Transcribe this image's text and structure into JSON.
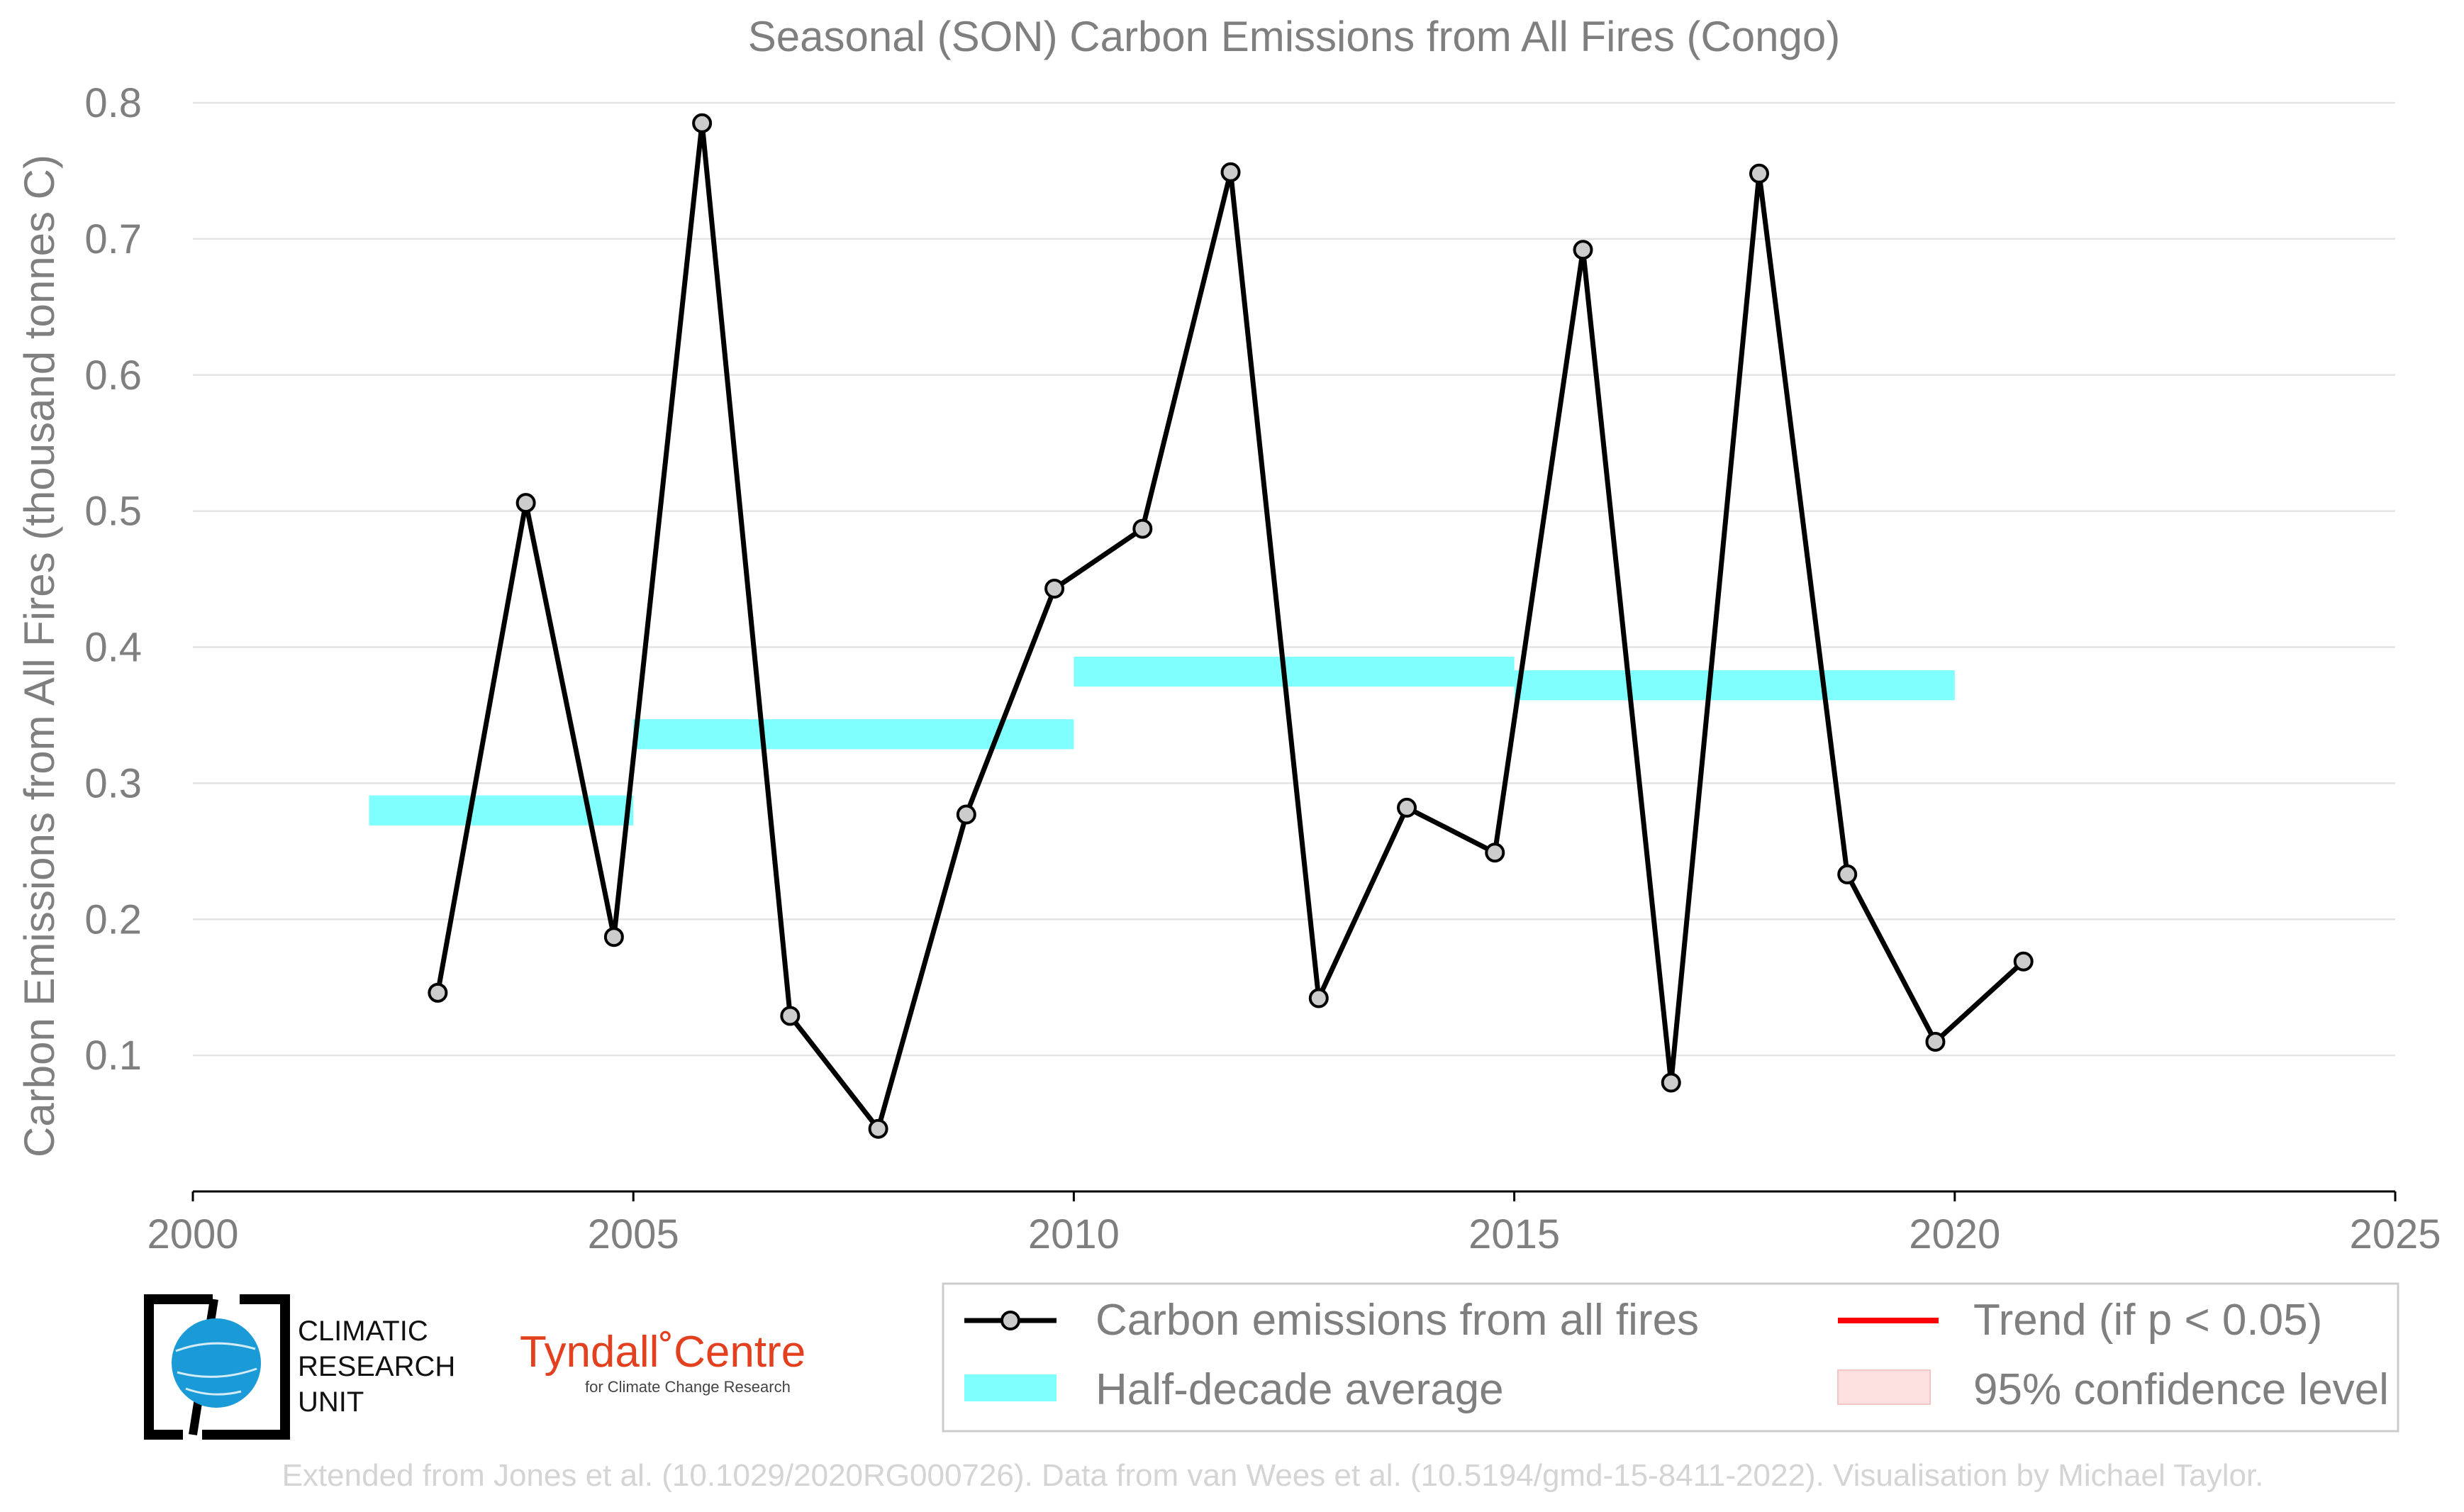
{
  "chart_data": {
    "type": "line",
    "title": "Seasonal (SON) Carbon Emissions from All Fires (Congo)",
    "xlabel": "",
    "ylabel": "Carbon Emissions from All Fires (thousand tonnes C)",
    "xlim": [
      2000,
      2025
    ],
    "ylim": [
      0,
      0.8
    ],
    "x_ticks": [
      "2000",
      "2005",
      "2010",
      "2015",
      "2020",
      "2025"
    ],
    "y_ticks": [
      "0.1",
      "0.2",
      "0.3",
      "0.4",
      "0.5",
      "0.6",
      "0.7",
      "0.8"
    ],
    "grid": "horizontal",
    "legend_position": "bottom-right",
    "series": [
      {
        "name": "Carbon emissions from all fires",
        "color": "#000000",
        "marker_fill": "#cccccc",
        "x": [
          2003,
          2004,
          2005,
          2006,
          2007,
          2008,
          2009,
          2010,
          2011,
          2012,
          2013,
          2014,
          2015,
          2016,
          2017,
          2018,
          2019,
          2020,
          2021
        ],
        "y": [
          0.146,
          0.506,
          0.187,
          0.785,
          0.129,
          0.046,
          0.277,
          0.443,
          0.487,
          0.749,
          0.142,
          0.282,
          0.249,
          0.692,
          0.08,
          0.748,
          0.233,
          0.11,
          0.169
        ]
      }
    ],
    "half_decade_average": {
      "name": "Half-decade average",
      "color": "#80ffff",
      "segments": [
        {
          "x_start": 2002,
          "x_end": 2005,
          "value": 0.28
        },
        {
          "x_start": 2005,
          "x_end": 2010,
          "value": 0.336
        },
        {
          "x_start": 2010,
          "x_end": 2015,
          "value": 0.382
        },
        {
          "x_start": 2015,
          "x_end": 2020,
          "value": 0.372
        }
      ]
    },
    "legend": [
      {
        "label": "Carbon emissions from all fires",
        "kind": "line-marker"
      },
      {
        "label": "Trend (if p < 0.05)",
        "kind": "trend-line",
        "color": "#ff0000"
      },
      {
        "label": "Half-decade average",
        "kind": "band",
        "color": "#80ffff"
      },
      {
        "label": "95% confidence level",
        "kind": "ci-patch",
        "color": "#fde0e0"
      }
    ]
  },
  "logos": {
    "cru": [
      "CLIMATIC",
      "RESEARCH",
      "UNIT"
    ],
    "tyndall": {
      "main": "Tyndall˚Centre",
      "sub": "for Climate Change Research"
    }
  },
  "footer": "Extended from Jones et al. (10.1029/2020RG000726). Data from van Wees et al. (10.5194/gmd-15-8411-2022). Visualisation by Michael Taylor."
}
